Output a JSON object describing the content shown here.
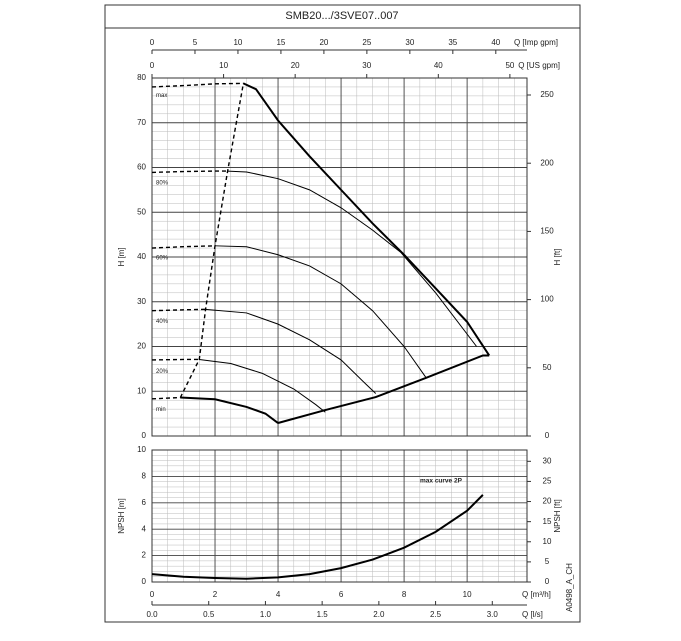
{
  "chart_data": [
    {
      "type": "line",
      "title": "SMB20.../3SVE07..007",
      "xlim": [
        0,
        11.9
      ],
      "x2label": "Q [Imp gpm]",
      "x2lim": [
        0,
        43.63
      ],
      "x2ticks": [
        0,
        5,
        10,
        15,
        20,
        25,
        30,
        35,
        40
      ],
      "x3label": "Q [US gpm]",
      "x3lim": [
        0,
        52.39
      ],
      "x3ticks": [
        0,
        10,
        20,
        30,
        40,
        50
      ],
      "ylabel": "H [m]",
      "ylim": [
        0,
        80
      ],
      "yticks": [
        0,
        10,
        20,
        30,
        40,
        50,
        60,
        70,
        80
      ],
      "y2label": "H [ft]",
      "y2lim": [
        0,
        262.47
      ],
      "y2ticks": [
        0,
        50,
        100,
        150,
        200,
        250
      ],
      "grid": true,
      "color": "#000000",
      "series": [
        {
          "style": "dashed",
          "x": [
            0,
            1,
            2,
            2.9
          ],
          "values": [
            78,
            78.3,
            78.7,
            78.8
          ]
        },
        {
          "name": "max",
          "style": "bold",
          "x": [
            2.9,
            3.3,
            3.7,
            4,
            5,
            6,
            7,
            8,
            9,
            10,
            10.7
          ],
          "values": [
            78.8,
            77.5,
            73.5,
            70.5,
            62.5,
            55,
            47.5,
            40.5,
            33,
            25.5,
            18
          ]
        },
        {
          "style": "dashed",
          "x": [
            0,
            1,
            2,
            2.4
          ],
          "values": [
            58.9,
            59.1,
            59.2,
            59.2
          ]
        },
        {
          "name": "80%",
          "style": "solid",
          "x": [
            2.4,
            3,
            4,
            5,
            6,
            7,
            7.9,
            9,
            10.3
          ],
          "values": [
            59.2,
            59,
            57.5,
            55,
            51,
            46,
            41,
            32,
            20
          ]
        },
        {
          "style": "dashed",
          "x": [
            0,
            1,
            2
          ],
          "values": [
            42,
            42.3,
            42.5
          ]
        },
        {
          "name": "60%",
          "style": "solid",
          "x": [
            2,
            3,
            4,
            5,
            6,
            7,
            8,
            8.7
          ],
          "values": [
            42.5,
            42.3,
            40.5,
            38,
            34,
            28,
            20,
            13
          ]
        },
        {
          "style": "dashed",
          "x": [
            0,
            1,
            1.7
          ],
          "values": [
            28,
            28.2,
            28.3
          ]
        },
        {
          "name": "40%",
          "style": "solid",
          "x": [
            1.7,
            3,
            4,
            5,
            6,
            6.8,
            7.1
          ],
          "values": [
            28.3,
            27.5,
            25,
            21.5,
            17,
            11.5,
            9.5
          ]
        },
        {
          "style": "dashed",
          "x": [
            0,
            1,
            1.5
          ],
          "values": [
            17,
            17.1,
            17.1
          ]
        },
        {
          "name": "20%",
          "style": "solid",
          "x": [
            1.5,
            2.5,
            3.5,
            4.5,
            5.2,
            5.5
          ],
          "values": [
            17.1,
            16.2,
            14,
            10.5,
            7,
            5.3
          ]
        },
        {
          "style": "dashed",
          "x": [
            0,
            0.9
          ],
          "values": [
            8.3,
            8.6
          ]
        },
        {
          "name": "min",
          "style": "bold",
          "x": [
            0.9,
            2,
            3,
            3.6,
            4
          ],
          "values": [
            8.6,
            8.2,
            6.5,
            5,
            2.9
          ]
        },
        {
          "style": "bold",
          "x": [
            4,
            5.5,
            7.1,
            8.7,
            10.5,
            10.7
          ],
          "values": [
            2.9,
            5.8,
            8.7,
            13,
            18,
            18
          ]
        },
        {
          "style": "dashed",
          "x": [
            0.9,
            1.5,
            1.7,
            2,
            2.4,
            2.9
          ],
          "values": [
            8.6,
            17.1,
            28.3,
            42.5,
            59.2,
            78.8
          ]
        }
      ]
    },
    {
      "type": "line",
      "xlabel": "Q [m³/h]",
      "xlim": [
        0,
        11.9
      ],
      "xticks": [
        0,
        2,
        4,
        6,
        8,
        10
      ],
      "x2label": "Q [l/s]",
      "x2lim": [
        0,
        3.306
      ],
      "x2ticks": [
        {
          "value": 0,
          "label": "0.0"
        },
        0.5,
        {
          "value": 1,
          "label": "1.0"
        },
        1.5,
        {
          "value": 2,
          "label": "2.0"
        },
        2.5,
        {
          "value": 3,
          "label": "3.0"
        }
      ],
      "ylabel": "NPSH [m]",
      "ylim": [
        0,
        10
      ],
      "yticks": [
        0,
        2,
        4,
        6,
        8,
        10
      ],
      "y2label": "NPSH [ft]",
      "y2lim": [
        0,
        32.81
      ],
      "y2ticks": [
        0,
        5,
        10,
        15,
        20,
        25,
        30
      ],
      "grid": true,
      "color": "#000000",
      "annotation": "max curve 2P",
      "side_label": "A0498_A_CH",
      "series": [
        {
          "style": "bold",
          "x": [
            0,
            1,
            2,
            3,
            4,
            5,
            6,
            7,
            8,
            9,
            10,
            10.5
          ],
          "values": [
            0.6,
            0.4,
            0.3,
            0.25,
            0.35,
            0.6,
            1.05,
            1.7,
            2.6,
            3.8,
            5.4,
            6.6
          ]
        }
      ]
    }
  ]
}
